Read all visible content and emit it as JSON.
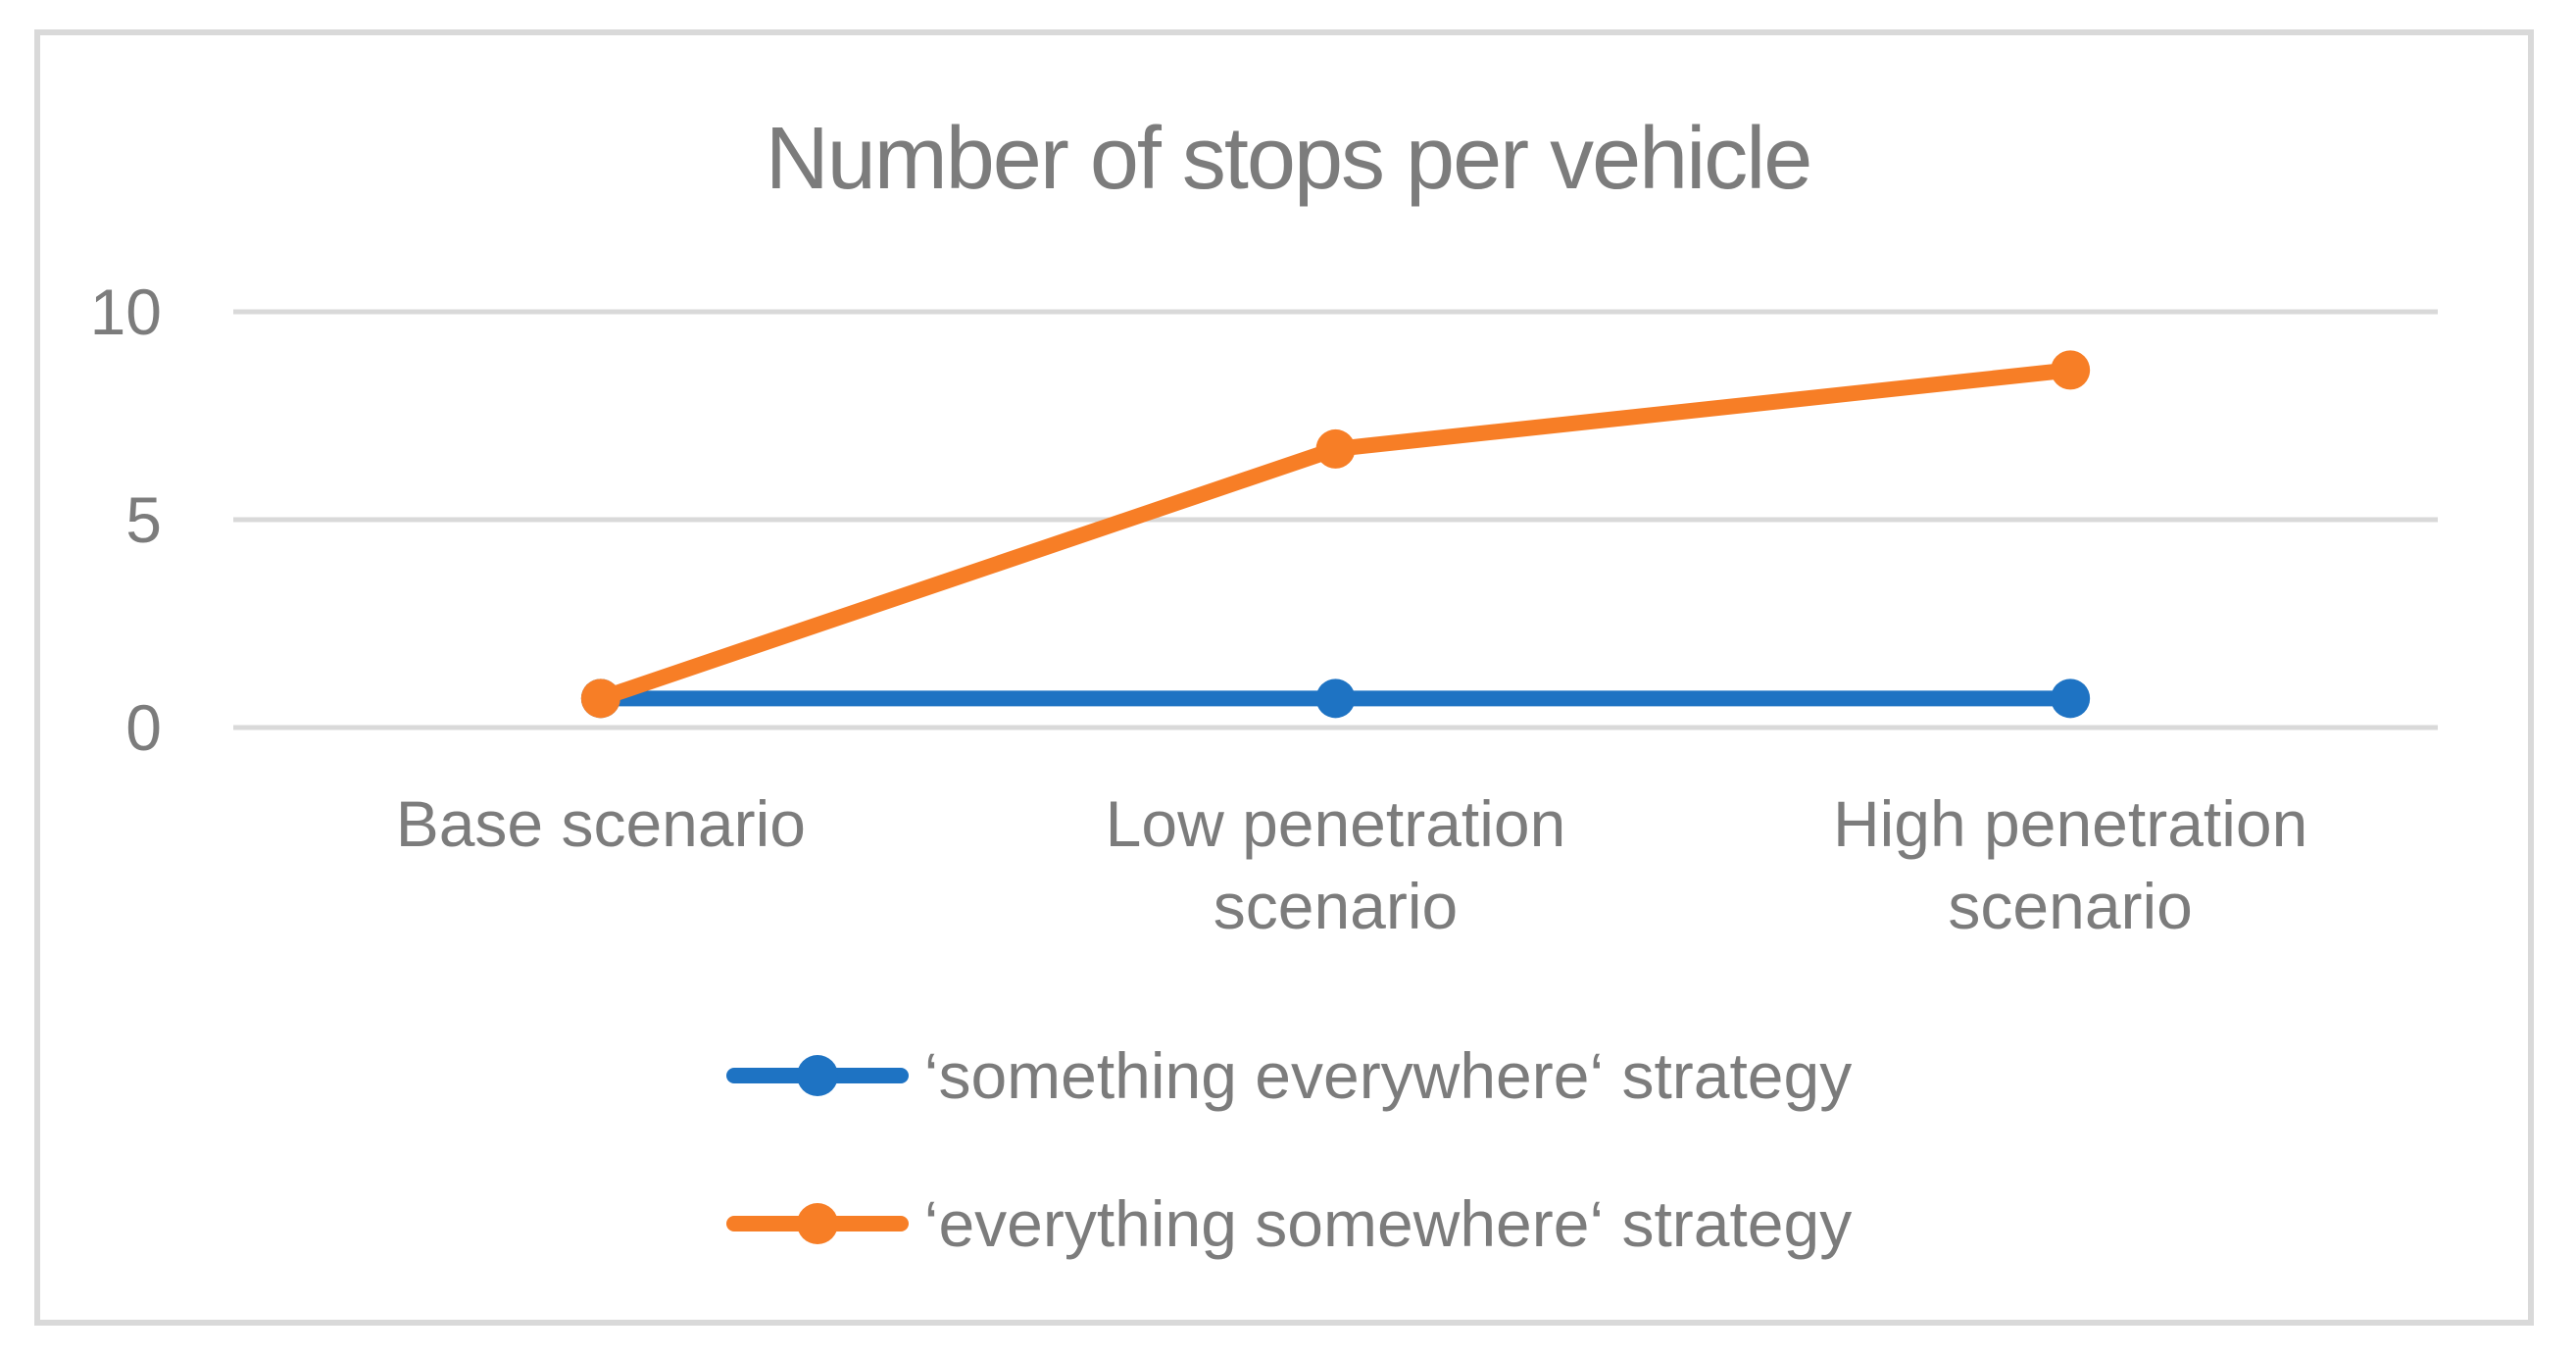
{
  "chart_data": {
    "type": "line",
    "title": "Number of stops per vehicle",
    "categories": [
      "Base scenario",
      "Low penetration scenario",
      "High penetration scenario"
    ],
    "series": [
      {
        "name": "‘something everywhere‘ strategy",
        "color": "#1E73C3",
        "values": [
          0.7,
          0.7,
          0.7
        ]
      },
      {
        "name": "‘everything somewhere‘ strategy",
        "color": "#F77E26",
        "values": [
          0.7,
          6.7,
          8.6
        ]
      }
    ],
    "yticks": [
      0,
      5,
      10
    ],
    "ylim": [
      0,
      10
    ],
    "xlabel": "",
    "ylabel": "",
    "grid": true,
    "legend_position": "bottom",
    "gridline_color": "#D9D9D9",
    "frame_color": "#D9D9D9",
    "text_color": "#7C7C7C"
  }
}
